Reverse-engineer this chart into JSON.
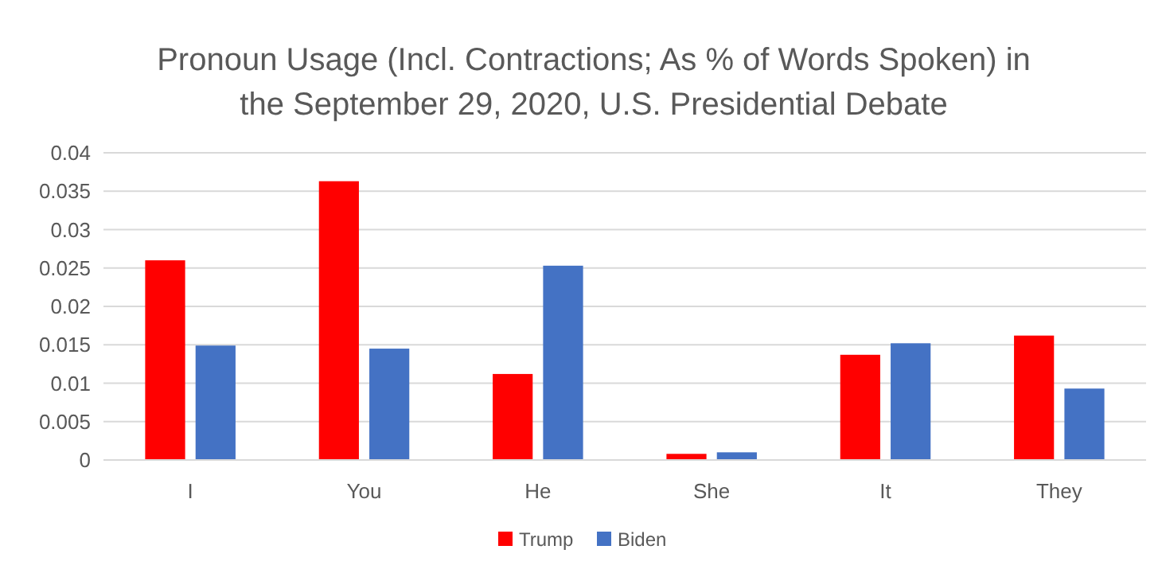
{
  "chart_data": {
    "type": "bar",
    "title": "Pronoun Usage (Incl. Contractions; As % of Words Spoken) in the September 29, 2020, U.S. Presidential Debate",
    "categories": [
      "I",
      "You",
      "He",
      "She",
      "It",
      "They"
    ],
    "series": [
      {
        "name": "Trump",
        "color": "#ff0000",
        "values": [
          0.026,
          0.0363,
          0.0112,
          0.0008,
          0.0137,
          0.0162
        ]
      },
      {
        "name": "Biden",
        "color": "#4472c4",
        "values": [
          0.0149,
          0.0145,
          0.0253,
          0.001,
          0.0152,
          0.0093
        ]
      }
    ],
    "ylim": [
      0,
      0.04
    ],
    "yticks": [
      0,
      0.005,
      0.01,
      0.015,
      0.02,
      0.025,
      0.03,
      0.035,
      0.04
    ],
    "grid": "y",
    "legend": "bottom"
  }
}
